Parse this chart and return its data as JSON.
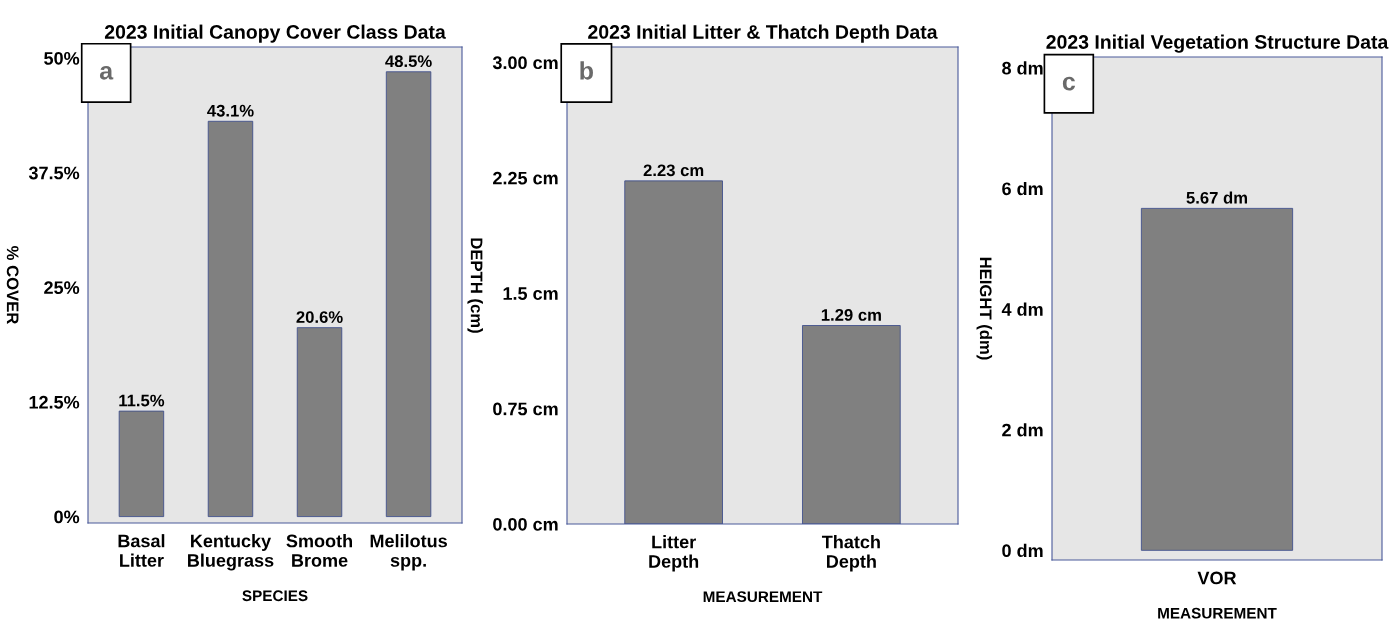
{
  "chart_data": [
    {
      "type": "bar",
      "title": "2023 Initial Canopy Cover Class Data",
      "xlabel": "SPECIES",
      "ylabel": "% COVER",
      "categories": [
        "Basal\nLitter",
        "Kentucky\nBluegrass",
        "Smooth\nBrome",
        "Melilotus\nspp."
      ],
      "values": [
        11.5,
        43.1,
        20.6,
        48.5
      ],
      "value_labels": [
        "11.5%",
        "43.1%",
        "20.6%",
        "48.5%"
      ],
      "color": "#808080",
      "ylim": [
        -0.7,
        51.2
      ],
      "yticks": [
        {
          "value": 0,
          "label": "0%"
        },
        {
          "value": 12.5,
          "label": "12.5%"
        },
        {
          "value": 25,
          "label": "25%"
        },
        {
          "value": 37.5,
          "label": "37.5%"
        },
        {
          "value": 50,
          "label": "50%"
        }
      ],
      "annotations": [
        "a"
      ],
      "grid": false,
      "legend": false
    },
    {
      "type": "bar",
      "title": "2023 Initial Litter & Thatch Depth Data",
      "xlabel": "MEASUREMENT",
      "ylabel": "DEPTH (cm)",
      "categories": [
        "Litter\nDepth",
        "Thatch\nDepth"
      ],
      "values": [
        2.23,
        1.29
      ],
      "value_labels": [
        "2.23 cm",
        "1.29 cm"
      ],
      "color": "#808080",
      "ylim": [
        0,
        3.1
      ],
      "yticks": [
        {
          "value": 0,
          "label": "0.00 cm"
        },
        {
          "value": 0.75,
          "label": "0.75 cm"
        },
        {
          "value": 1.5,
          "label": "1.5 cm"
        },
        {
          "value": 2.25,
          "label": "2.25 cm"
        },
        {
          "value": 3.0,
          "label": "3.00 cm"
        }
      ],
      "annotations": [
        "b"
      ],
      "grid": false,
      "legend": false
    },
    {
      "type": "bar",
      "title": "2023 Initial Vegetation Structure Data",
      "xlabel": "MEASUREMENT",
      "ylabel": "HEIGHT (dm)",
      "categories": [
        "VOR"
      ],
      "values": [
        5.67
      ],
      "value_labels": [
        "5.67 dm"
      ],
      "color": "#808080",
      "ylim": [
        -0.16,
        8.18
      ],
      "yticks": [
        {
          "value": 0,
          "label": "0 dm"
        },
        {
          "value": 2,
          "label": "2 dm"
        },
        {
          "value": 4,
          "label": "4 dm"
        },
        {
          "value": 6,
          "label": "6 dm"
        },
        {
          "value": 8,
          "label": "8 dm"
        }
      ],
      "annotations": [
        "c"
      ],
      "grid": false,
      "legend": false
    }
  ]
}
